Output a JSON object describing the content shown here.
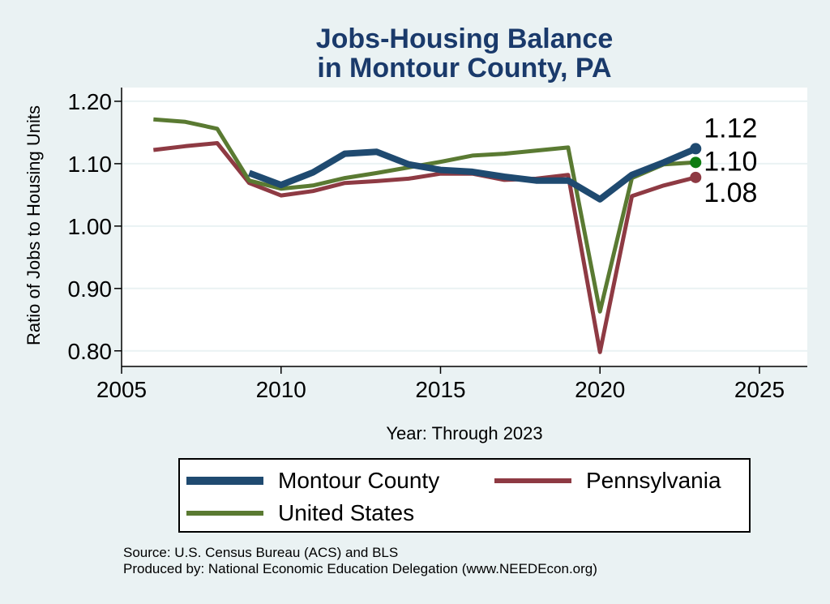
{
  "colors": {
    "background": "#eaf2f3",
    "plot_background": "#ffffff",
    "title": "#1a3a6b",
    "montour": "#1f4a70",
    "pennsylvania": "#8e3a43",
    "us": "#5a7a32",
    "us_marker": "#0e7d12"
  },
  "chart_data": {
    "type": "line",
    "title": [
      "Jobs-Housing Balance",
      "in Montour County, PA"
    ],
    "xlabel": "Year: Through 2023",
    "ylabel": "Ratio of Jobs to Housing Units",
    "xlim": [
      2005,
      2026.5
    ],
    "ylim": [
      0.775,
      1.222
    ],
    "xticks": [
      2005,
      2010,
      2015,
      2020,
      2025
    ],
    "xtick_labels": [
      "2005",
      "2010",
      "2015",
      "2020",
      "2025"
    ],
    "yticks": [
      0.8,
      0.9,
      1.0,
      1.1,
      1.2
    ],
    "ytick_labels": [
      "0.80",
      "0.90",
      "1.00",
      "1.10",
      "1.20"
    ],
    "grid": true,
    "series": [
      {
        "key": "montour",
        "name": "Montour County",
        "x": [
          2009,
          2010,
          2011,
          2012,
          2013,
          2014,
          2015,
          2016,
          2017,
          2018,
          2019,
          2020,
          2021,
          2022,
          2023
        ],
        "values": [
          1.085,
          1.066,
          1.086,
          1.116,
          1.119,
          1.099,
          1.09,
          1.087,
          1.079,
          1.073,
          1.073,
          1.043,
          1.082,
          1.102,
          1.124
        ],
        "end_label": "1.12"
      },
      {
        "key": "pennsylvania",
        "name": "Pennsylvania",
        "x": [
          2006,
          2007,
          2008,
          2009,
          2010,
          2011,
          2012,
          2013,
          2014,
          2015,
          2016,
          2017,
          2018,
          2019,
          2020,
          2021,
          2022,
          2023
        ],
        "values": [
          1.122,
          1.128,
          1.133,
          1.069,
          1.049,
          1.056,
          1.069,
          1.072,
          1.076,
          1.084,
          1.084,
          1.074,
          1.076,
          1.082,
          0.798,
          1.048,
          1.065,
          1.078
        ],
        "end_label": "1.08"
      },
      {
        "key": "us",
        "name": "United States",
        "x": [
          2006,
          2007,
          2008,
          2009,
          2010,
          2011,
          2012,
          2013,
          2014,
          2015,
          2016,
          2017,
          2018,
          2019,
          2020,
          2021,
          2022,
          2023
        ],
        "values": [
          1.171,
          1.167,
          1.156,
          1.073,
          1.06,
          1.065,
          1.077,
          1.085,
          1.094,
          1.103,
          1.113,
          1.116,
          1.121,
          1.126,
          0.863,
          1.077,
          1.099,
          1.102
        ],
        "end_label": "1.10"
      }
    ],
    "legend": [
      "Montour County",
      "Pennsylvania",
      "United States"
    ]
  },
  "source_lines": [
    "Source: U.S. Census Bureau (ACS) and BLS",
    "Produced by: National Economic Education Delegation (www.NEEDEcon.org)"
  ]
}
